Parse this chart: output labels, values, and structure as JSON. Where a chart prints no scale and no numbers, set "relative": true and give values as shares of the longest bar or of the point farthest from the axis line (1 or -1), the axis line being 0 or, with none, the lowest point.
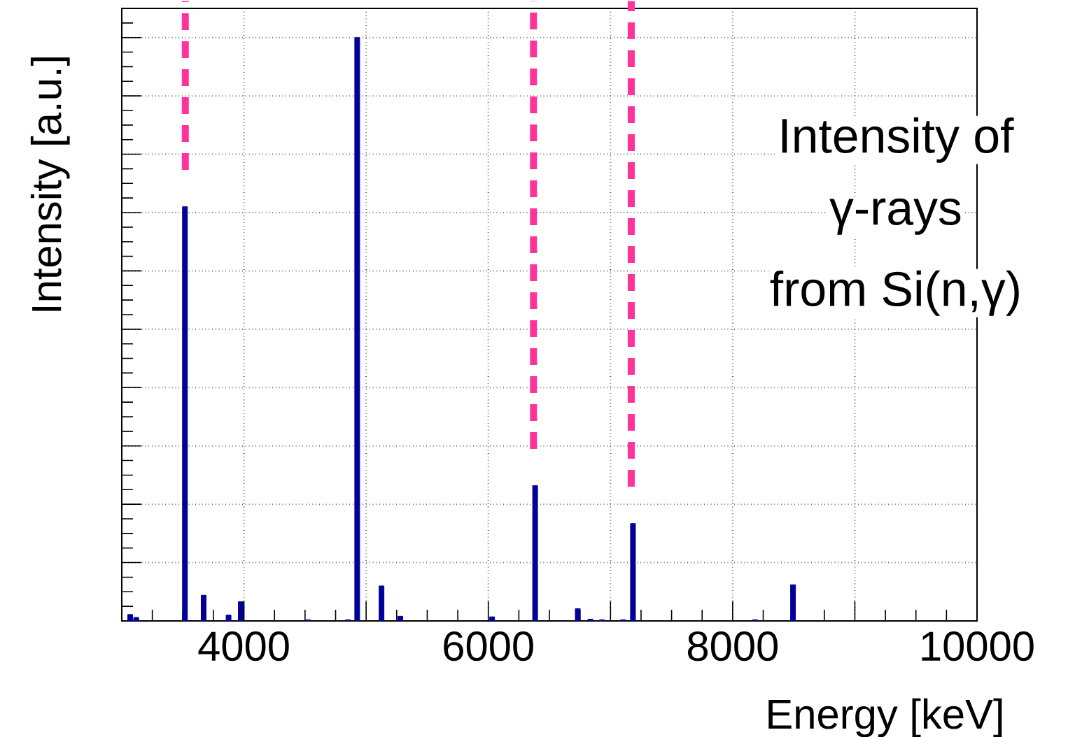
{
  "chart_data": {
    "type": "bar",
    "xlabel": "Energy [keV]",
    "ylabel": "Intensity [a.u.]",
    "annotations": [
      "Intensity of",
      "γ-rays",
      "from Si(n,γ)"
    ],
    "x": [
      3069,
      3118,
      3517,
      3670,
      3874,
      3974,
      4525,
      4851,
      4927,
      5126,
      5280,
      6031,
      6383,
      6732,
      6835,
      6931,
      7103,
      7184,
      8184,
      8494
    ],
    "values": [
      0.011,
      0.006,
      0.71,
      0.044,
      0.01,
      0.033,
      0.002,
      0.002,
      1,
      0.06,
      0.008,
      0.007,
      0.232,
      0.021,
      0.003,
      0.002,
      0.002,
      0.167,
      0.002,
      0.062
    ],
    "color": "#000099",
    "relative": true,
    "xlim": [
      3000,
      10000
    ],
    "xticks": [
      {
        "value": 3000,
        "label": null
      },
      4000,
      {
        "value": 5000,
        "label": null
      },
      6000,
      {
        "value": 7000,
        "label": null
      },
      8000,
      {
        "value": 9000,
        "label": null
      },
      10000
    ],
    "grid": true,
    "ref_lines": [
      {
        "axis": "x",
        "value": 3520,
        "color": "#ff3399",
        "line_style": "dashed"
      },
      {
        "axis": "x",
        "value": 6370,
        "color": "#ff3399",
        "line_style": "dashed"
      },
      {
        "axis": "x",
        "value": 7170,
        "color": "#ff3399",
        "line_style": "dashed"
      }
    ]
  }
}
